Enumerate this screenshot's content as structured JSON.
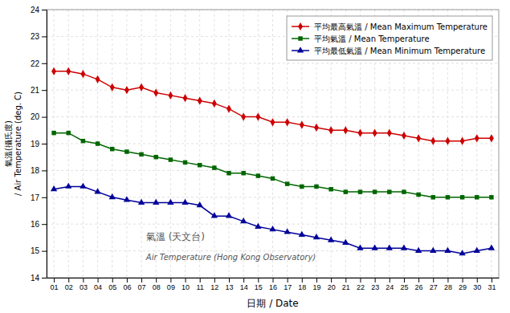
{
  "chart_data": {
    "type": "line",
    "x": [
      1,
      2,
      3,
      4,
      5,
      6,
      7,
      8,
      9,
      10,
      11,
      12,
      13,
      14,
      15,
      16,
      17,
      18,
      19,
      20,
      21,
      22,
      23,
      24,
      25,
      26,
      27,
      28,
      29,
      30,
      31
    ],
    "series": [
      {
        "name": "平均最高氣溫 / Mean Maximum Temperature",
        "color": "#cc0000",
        "marker": "diamond",
        "values": [
          21.7,
          21.7,
          21.6,
          21.4,
          21.1,
          21.0,
          21.1,
          20.9,
          20.8,
          20.7,
          20.6,
          20.5,
          20.3,
          20.0,
          20.0,
          19.8,
          19.8,
          19.7,
          19.6,
          19.5,
          19.5,
          19.4,
          19.4,
          19.4,
          19.3,
          19.2,
          19.1,
          19.1,
          19.1,
          19.2,
          19.2
        ]
      },
      {
        "name": "平均氣溫 / Mean Temperature",
        "color": "#006600",
        "marker": "square",
        "values": [
          19.4,
          19.4,
          19.1,
          19.0,
          18.8,
          18.7,
          18.6,
          18.5,
          18.4,
          18.3,
          18.2,
          18.1,
          17.9,
          17.9,
          17.8,
          17.7,
          17.5,
          17.4,
          17.4,
          17.3,
          17.2,
          17.2,
          17.2,
          17.2,
          17.2,
          17.1,
          17.0,
          17.0,
          17.0,
          17.0,
          17.0
        ]
      },
      {
        "name": "平均最低氣溫 / Mean Minimum Temperature",
        "color": "#000099",
        "marker": "triangle",
        "values": [
          17.3,
          17.4,
          17.4,
          17.2,
          17.0,
          16.9,
          16.8,
          16.8,
          16.8,
          16.8,
          16.7,
          16.3,
          16.3,
          16.1,
          15.9,
          15.8,
          15.7,
          15.6,
          15.5,
          15.4,
          15.3,
          15.1,
          15.1,
          15.1,
          15.1,
          15.0,
          15.0,
          15.0,
          14.9,
          15.0,
          15.1
        ]
      }
    ],
    "xlabel": "日期 / Date",
    "ylabel": "氣溫(攝氏度)\n/ Air Temperature (deg. C)",
    "annotations": [
      "氣溫 (天文台)",
      "Air Temperature (Hong Kong Observatory)"
    ],
    "xlim": [
      0.5,
      31.5
    ],
    "xticks": [
      {
        "value": 1,
        "label": "01"
      },
      {
        "value": 2,
        "label": "02"
      },
      {
        "value": 3,
        "label": "03"
      },
      {
        "value": 4,
        "label": "04"
      },
      {
        "value": 5,
        "label": "05"
      },
      {
        "value": 6,
        "label": "06"
      },
      {
        "value": 7,
        "label": "07"
      },
      {
        "value": 8,
        "label": "08"
      },
      {
        "value": 9,
        "label": "09"
      },
      {
        "value": 10,
        "label": "10"
      },
      {
        "value": 11,
        "label": "11"
      },
      {
        "value": 12,
        "label": "12"
      },
      {
        "value": 13,
        "label": "13"
      },
      {
        "value": 14,
        "label": "14"
      },
      {
        "value": 15,
        "label": "15"
      },
      {
        "value": 16,
        "label": "16"
      },
      {
        "value": 17,
        "label": "17"
      },
      {
        "value": 18,
        "label": "18"
      },
      {
        "value": 19,
        "label": "19"
      },
      {
        "value": 20,
        "label": "20"
      },
      {
        "value": 21,
        "label": "21"
      },
      {
        "value": 22,
        "label": "22"
      },
      {
        "value": 23,
        "label": "23"
      },
      {
        "value": 24,
        "label": "24"
      },
      {
        "value": 25,
        "label": "25"
      },
      {
        "value": 26,
        "label": "26"
      },
      {
        "value": 27,
        "label": "27"
      },
      {
        "value": 28,
        "label": "28"
      },
      {
        "value": 29,
        "label": "29"
      },
      {
        "value": 30,
        "label": "30"
      },
      {
        "value": 31,
        "label": "31"
      }
    ],
    "ylim": [
      14.0,
      24.0
    ],
    "yticks": [
      14,
      15,
      16,
      17,
      18,
      19,
      20,
      21,
      22,
      23,
      24
    ],
    "grid": true,
    "legend": "upper right"
  }
}
